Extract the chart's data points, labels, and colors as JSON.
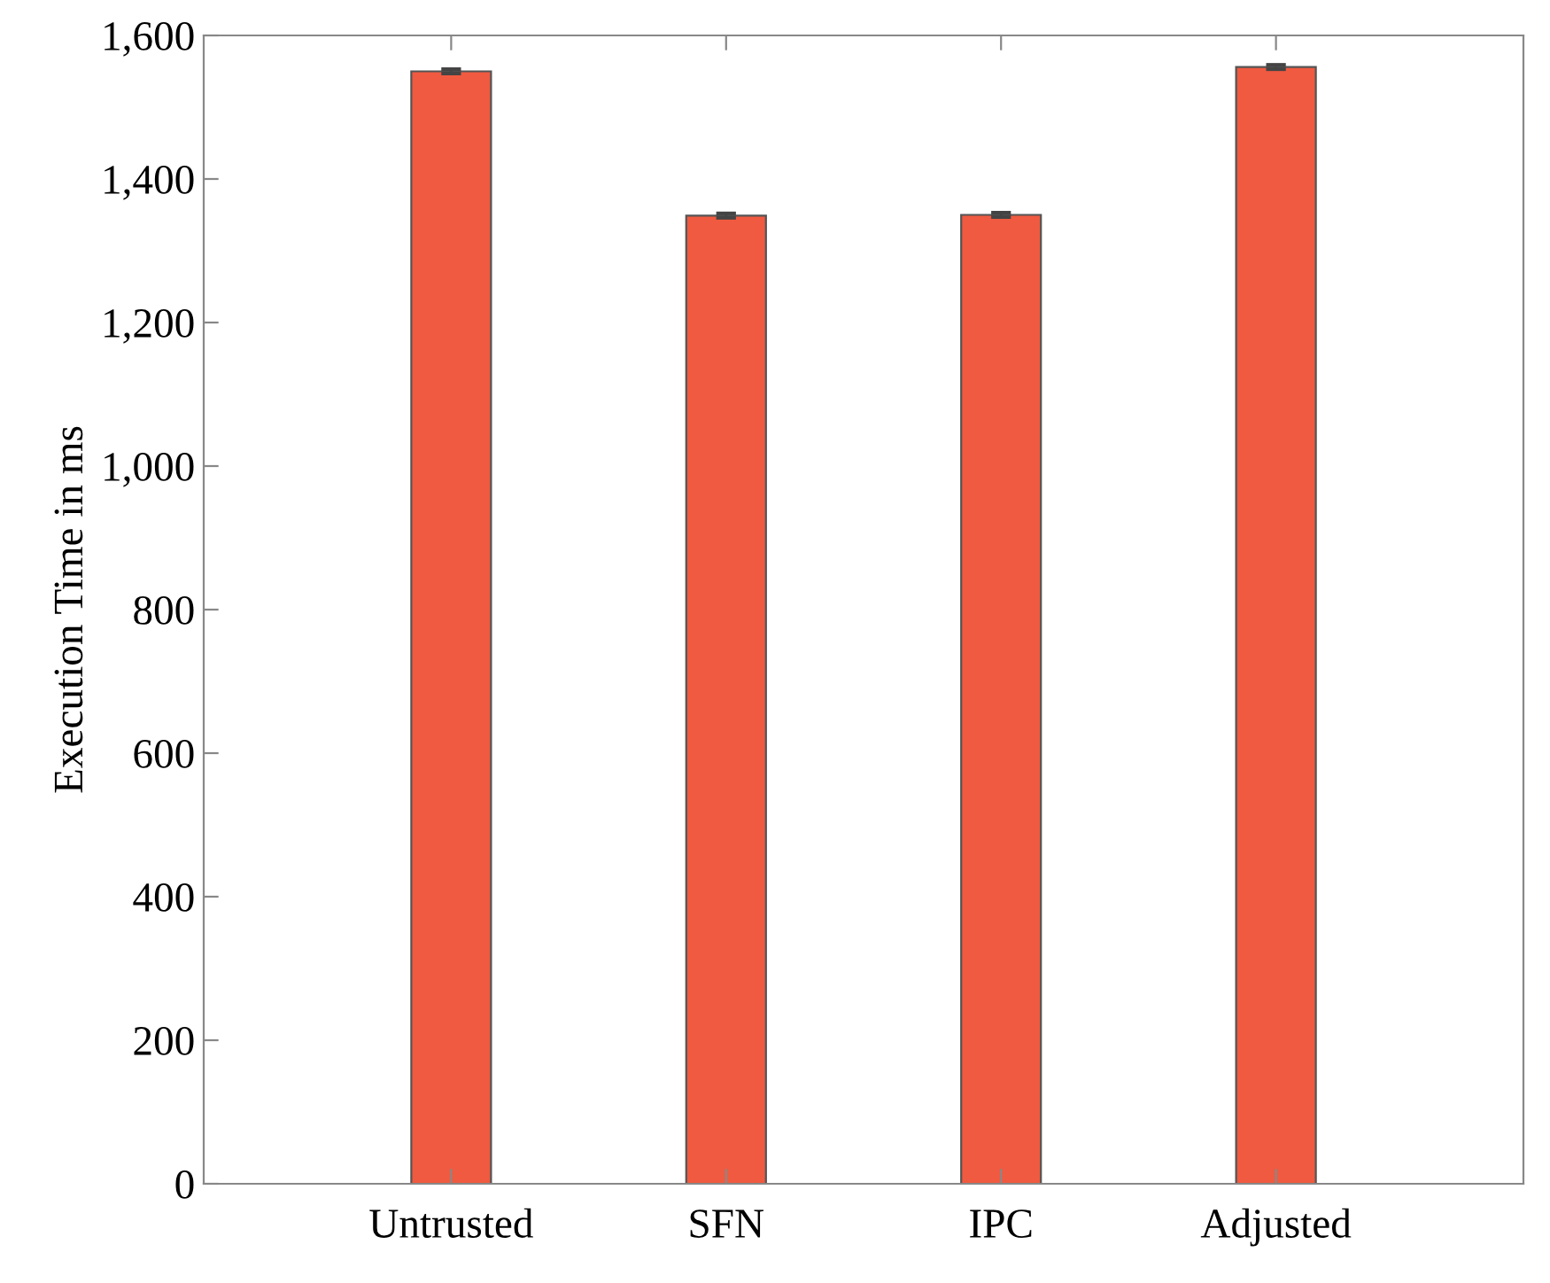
{
  "chart_data": {
    "type": "bar",
    "ylabel": "Execution Time in ms",
    "categories": [
      "Untrusted",
      "SFN",
      "IPC",
      "Adjusted"
    ],
    "values": [
      1550,
      1349,
      1350,
      1556
    ],
    "errors": [
      3,
      3,
      3,
      3
    ],
    "color": "#f05a40",
    "ylim": [
      0,
      1600
    ],
    "yticks": [
      {
        "value": 0,
        "label": "0"
      },
      {
        "value": 200,
        "label": "200"
      },
      {
        "value": 400,
        "label": "400"
      },
      {
        "value": 600,
        "label": "600"
      },
      {
        "value": 800,
        "label": "800"
      },
      {
        "value": 1000,
        "label": "1,000"
      },
      {
        "value": 1200,
        "label": "1,200"
      },
      {
        "value": 1400,
        "label": "1,400"
      },
      {
        "value": 1600,
        "label": "1,600"
      }
    ],
    "grid": false,
    "legend": false
  }
}
